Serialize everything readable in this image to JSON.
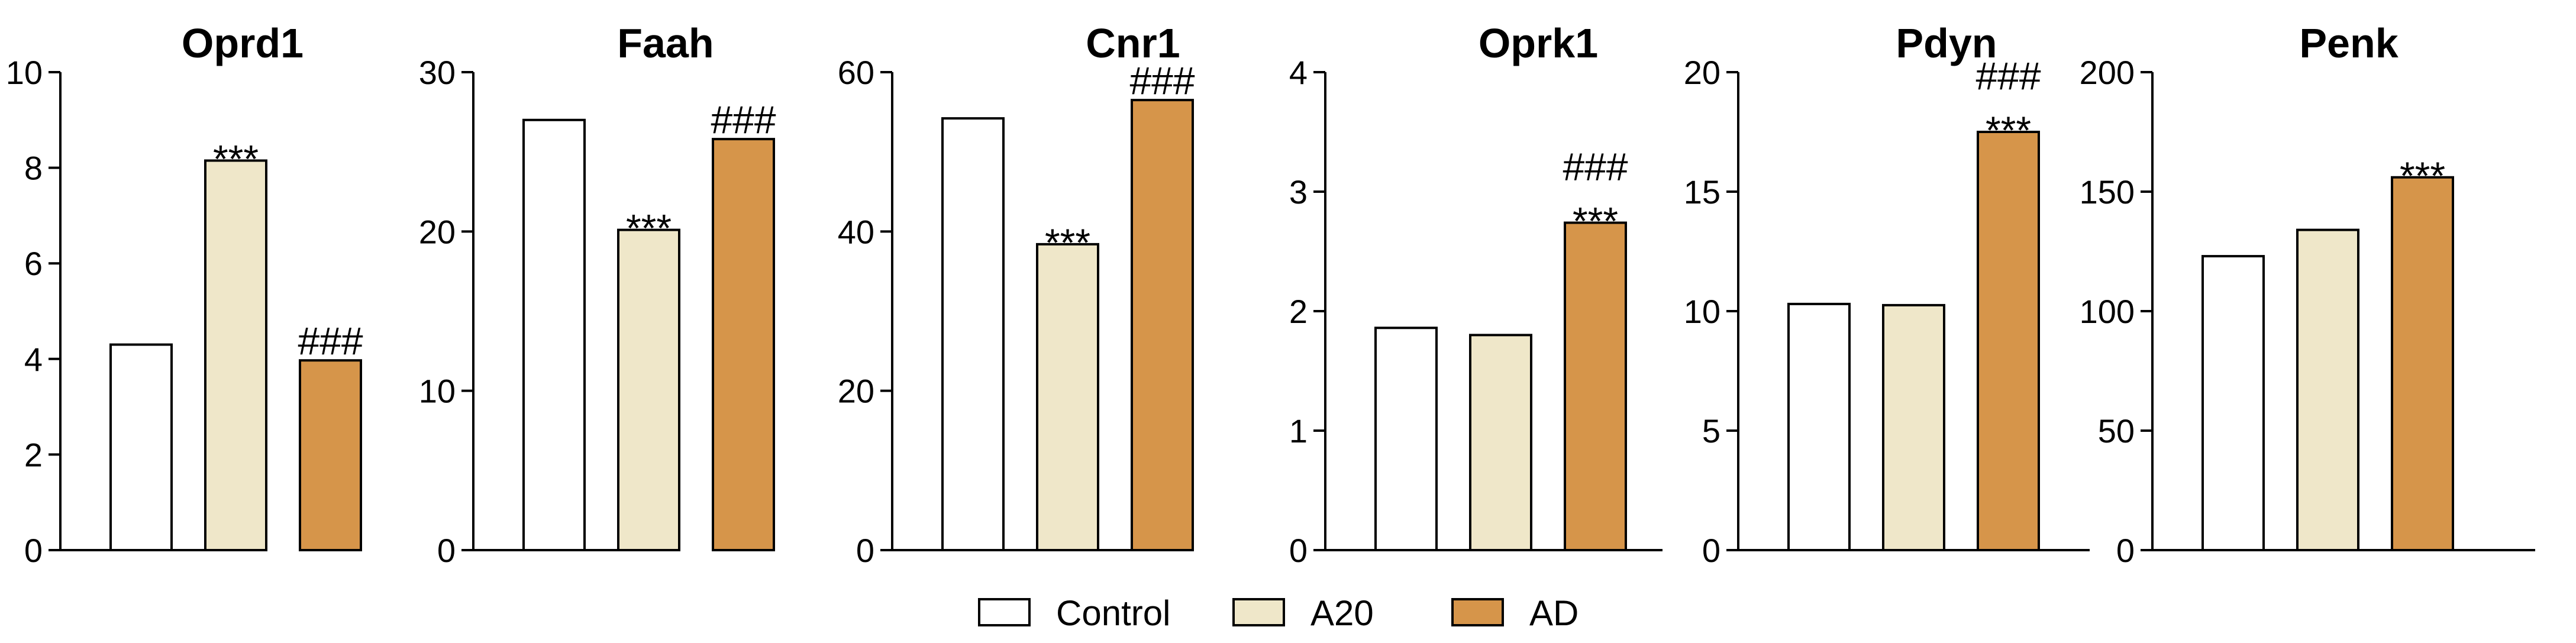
{
  "legend": {
    "placement": "bottom-center",
    "items": [
      {
        "label": "Control",
        "color": "#ffffff"
      },
      {
        "label": "A20",
        "color": "#efe7c9"
      },
      {
        "label": "AD",
        "color": "#d6954a"
      }
    ]
  },
  "chart_data": [
    {
      "type": "bar",
      "title": "Oprd1",
      "categories": [
        "Control",
        "A20",
        "AD"
      ],
      "values": [
        4.3,
        8.15,
        3.97
      ],
      "ylim": [
        0,
        10
      ],
      "yticks": [
        0,
        2,
        4,
        6,
        8,
        10
      ],
      "annotations": [
        "",
        "***",
        "###"
      ]
    },
    {
      "type": "bar",
      "title": "Faah",
      "categories": [
        "Control",
        "A20",
        "AD"
      ],
      "values": [
        27,
        20.1,
        25.8
      ],
      "ylim": [
        0,
        30
      ],
      "yticks": [
        0,
        10,
        20,
        30
      ],
      "annotations": [
        "",
        "***",
        "###"
      ]
    },
    {
      "type": "bar",
      "title": "Cnr1",
      "categories": [
        "Control",
        "A20",
        "AD"
      ],
      "values": [
        54.2,
        38.4,
        56.5
      ],
      "ylim": [
        0,
        60
      ],
      "yticks": [
        0,
        20,
        40,
        60
      ],
      "annotations": [
        "",
        "***",
        "###"
      ]
    },
    {
      "type": "bar",
      "title": "Oprk1",
      "categories": [
        "Control",
        "A20",
        "AD"
      ],
      "values": [
        1.86,
        1.8,
        2.74
      ],
      "ylim": [
        0,
        4
      ],
      "yticks": [
        0,
        1,
        2,
        3,
        4
      ],
      "annotations": [
        "",
        "",
        "###\n***"
      ]
    },
    {
      "type": "bar",
      "title": "Pdyn",
      "categories": [
        "Control",
        "A20",
        "AD"
      ],
      "values": [
        10.3,
        10.25,
        17.5
      ],
      "ylim": [
        0,
        20
      ],
      "yticks": [
        0,
        5,
        10,
        15,
        20
      ],
      "annotations": [
        "",
        "",
        "###\n***"
      ]
    },
    {
      "type": "bar",
      "title": "Penk",
      "categories": [
        "Control",
        "A20",
        "AD"
      ],
      "values": [
        123,
        134,
        156
      ],
      "ylim": [
        0,
        200
      ],
      "yticks": [
        0,
        50,
        100,
        150,
        200
      ],
      "annotations": [
        "",
        "",
        "***"
      ]
    }
  ]
}
